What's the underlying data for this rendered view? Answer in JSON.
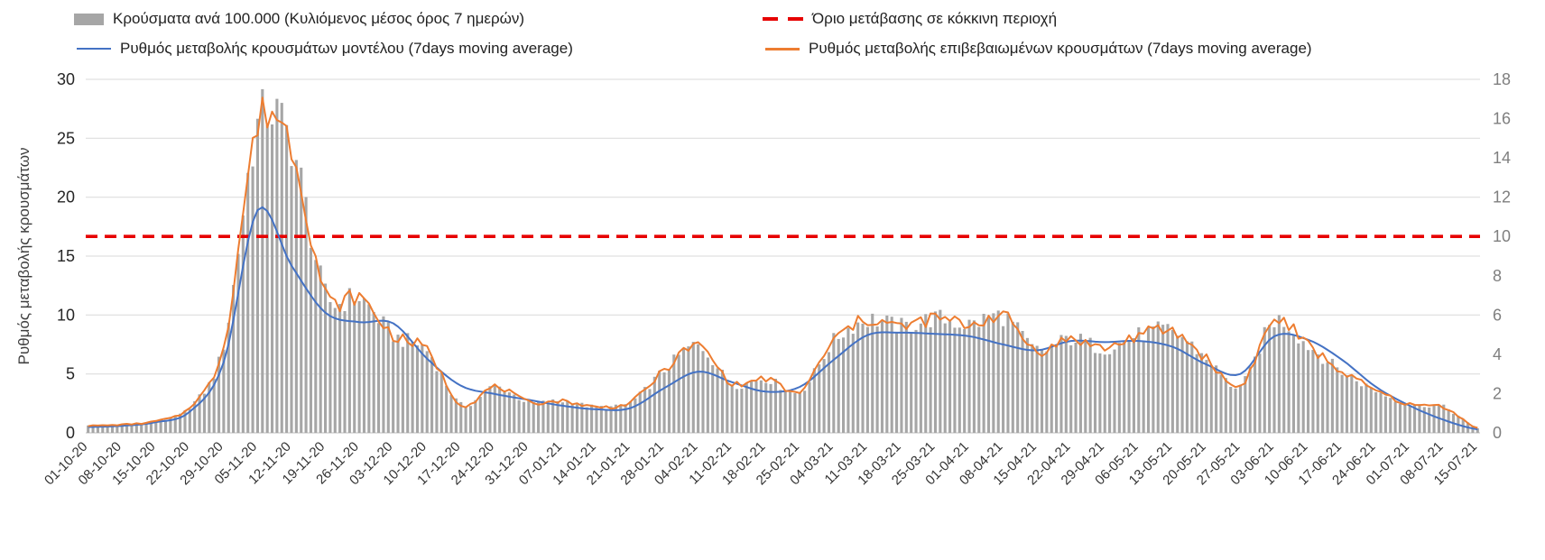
{
  "legend": {
    "items": [
      {
        "label": "Κρούσματα ανά 100.000 (Κυλιόμενος μέσος όρος 7 ημερών)",
        "swatch": "bar",
        "color": "#a6a6a6"
      },
      {
        "label": "Όριο μετάβασης σε κόκκινη περιοχή",
        "swatch": "dashed-line",
        "color": "#e60000"
      },
      {
        "label": "Ρυθμός μεταβολής κρουσμάτων μοντέλου (7days moving average)",
        "swatch": "line",
        "color": "#4472c4"
      },
      {
        "label": "Ρυθμός μεταβολής επιβεβαιωμένων κρουσμάτων (7days moving average)",
        "swatch": "line",
        "color": "#ed7d31"
      }
    ]
  },
  "chart_data": {
    "type": "bar+line",
    "title": "",
    "ylabel_left": "Ρυθμός μεταβολής κρουσμάτων",
    "legend_position": "top",
    "grid": "horizontal",
    "left_axis": {
      "min": 0,
      "max": 30,
      "ticks": [
        0,
        5,
        10,
        15,
        20,
        25,
        30
      ]
    },
    "right_axis": {
      "min": 0,
      "max": 18,
      "ticks": [
        0,
        2,
        4,
        6,
        8,
        10,
        12,
        14,
        16,
        18
      ]
    },
    "n_days": 288,
    "days_per_tick": 7,
    "x_tick_labels": [
      "01-10-20",
      "08-10-20",
      "15-10-20",
      "22-10-20",
      "29-10-20",
      "05-11-20",
      "12-11-20",
      "19-11-20",
      "26-11-20",
      "03-12-20",
      "10-12-20",
      "17-12-20",
      "24-12-20",
      "31-12-20",
      "07-01-21",
      "14-01-21",
      "21-01-21",
      "28-01-21",
      "04-02-21",
      "11-02-21",
      "18-02-21",
      "25-02-21",
      "04-03-21",
      "11-03-21",
      "18-03-21",
      "25-03-21",
      "01-04-21",
      "08-04-21",
      "15-04-21",
      "22-04-21",
      "29-04-21",
      "06-05-21",
      "13-05-21",
      "20-05-21",
      "27-05-21",
      "03-06-21",
      "10-06-21",
      "17-06-21",
      "24-06-21",
      "01-07-21",
      "08-07-21",
      "15-07-21"
    ],
    "threshold": {
      "name": "Όριο μετάβασης σε κόκκινη περιοχή",
      "axis": "right",
      "value": 10,
      "color": "#e60000",
      "style": "dashed"
    },
    "series": [
      {
        "name": "Κρούσματα ανά 100.000 (Κυλιόμενος μέσος όρος 7 ημερών)",
        "type": "bar",
        "axis": "right",
        "color": "#a6a6a6",
        "weekly_values": [
          0.36,
          0.42,
          0.6,
          1.32,
          4.5,
          15.6,
          14.7,
          7.08,
          6.9,
          4.98,
          4.2,
          1.44,
          2.34,
          1.56,
          1.62,
          1.32,
          1.56,
          3.18,
          4.44,
          2.52,
          2.76,
          2.1,
          4.68,
          5.76,
          5.4,
          5.82,
          5.52,
          5.94,
          4.2,
          4.8,
          4.32,
          4.98,
          5.16,
          3.78,
          2.4,
          5.7,
          4.44,
          3.12,
          2.16,
          1.44,
          1.32,
          0.24
        ]
      },
      {
        "name": "Ρυθμός μεταβολής κρουσμάτων μοντέλου (7days moving average)",
        "type": "line",
        "axis": "left",
        "color": "#4472c4",
        "weekly_values": [
          0.5,
          0.6,
          0.9,
          1.8,
          6.0,
          18.9,
          14.2,
          10.2,
          9.4,
          9.3,
          6.3,
          4.0,
          3.3,
          2.8,
          2.3,
          2.0,
          2.1,
          3.8,
          5.2,
          4.3,
          3.5,
          3.9,
          6.2,
          8.3,
          8.5,
          8.4,
          8.2,
          7.5,
          7.0,
          7.8,
          7.7,
          7.8,
          7.3,
          5.8,
          5.0,
          8.2,
          7.9,
          6.2,
          3.9,
          2.3,
          1.1,
          0.3
        ]
      },
      {
        "name": "Ρυθμός μεταβολής επιβεβαιωμένων κρουσμάτων (7days moving average)",
        "type": "line",
        "axis": "left",
        "color": "#ed7d31",
        "weekly_values": [
          0.6,
          0.7,
          1.0,
          2.2,
          7.5,
          26.0,
          24.5,
          11.8,
          11.5,
          8.3,
          7.0,
          2.4,
          3.9,
          2.6,
          2.7,
          2.2,
          2.6,
          5.3,
          7.4,
          4.2,
          4.6,
          3.5,
          7.8,
          9.6,
          9.0,
          9.7,
          9.2,
          9.9,
          7.0,
          8.0,
          7.2,
          8.3,
          8.6,
          6.3,
          4.0,
          9.5,
          7.4,
          5.2,
          3.6,
          2.4,
          2.2,
          0.4
        ]
      }
    ],
    "note": "weekly_values are the series values read at each x tick; daily bars/lines between ticks are interpolated"
  }
}
